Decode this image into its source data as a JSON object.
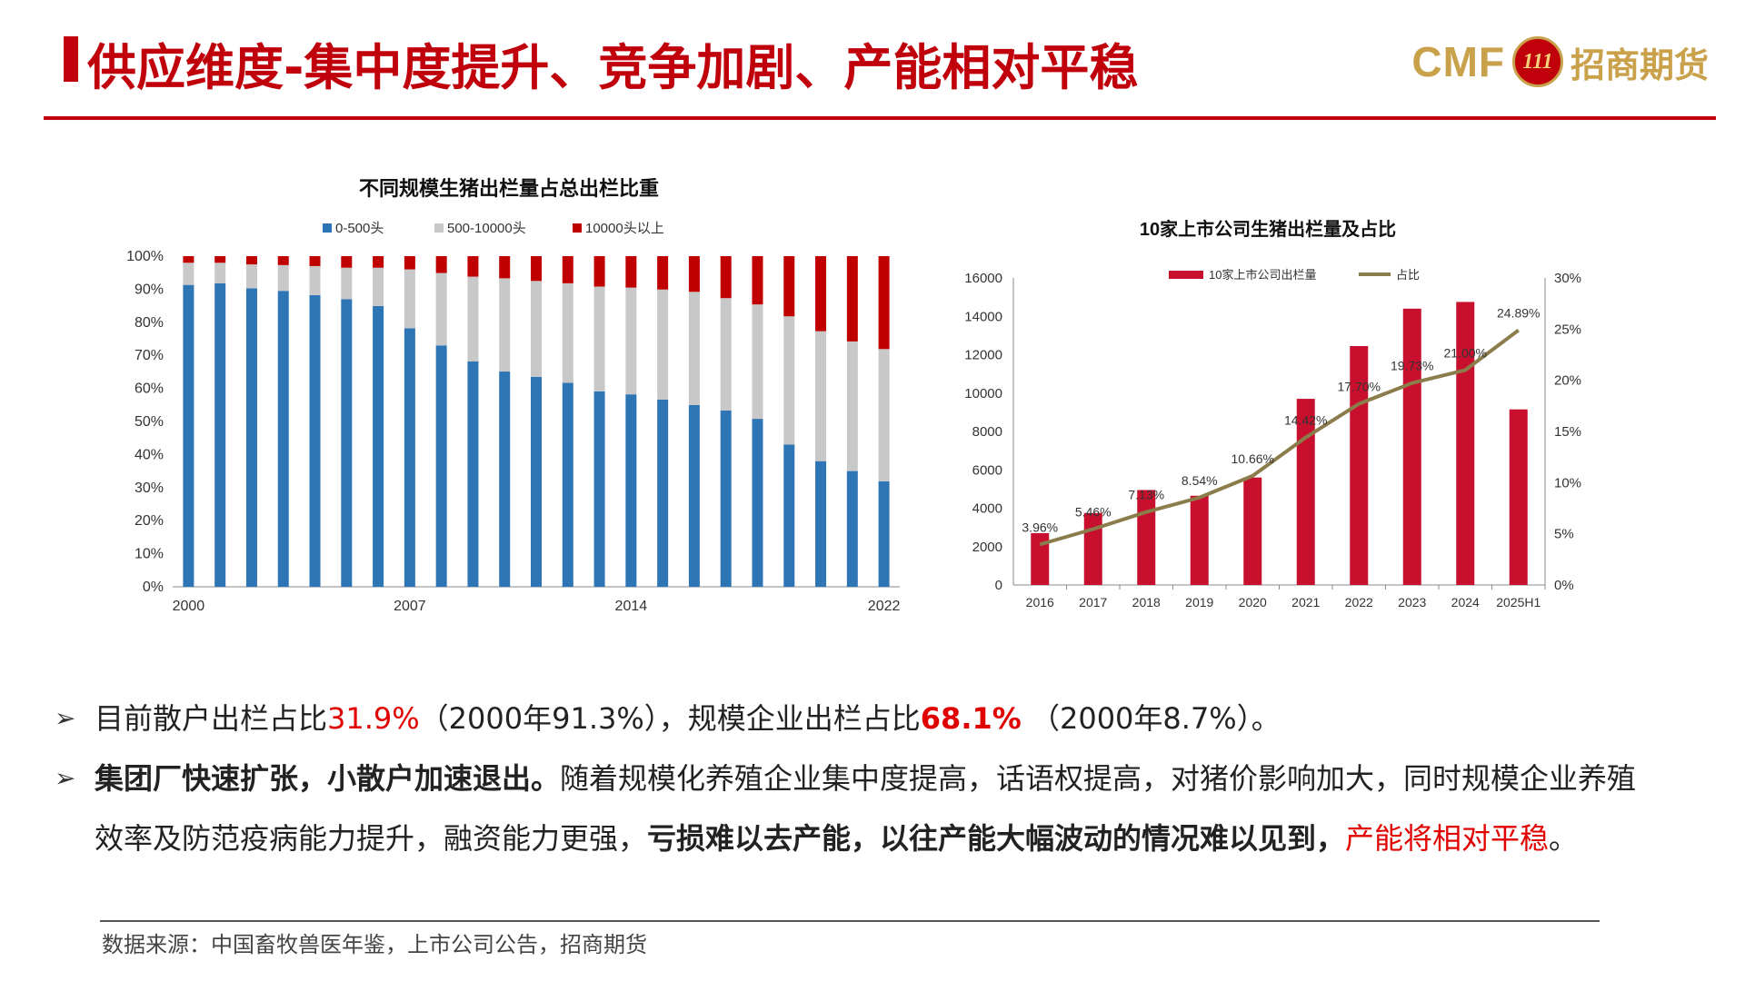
{
  "header": {
    "title": "供应维度-集中度提升、竞争加剧、产能相对平稳",
    "logo_text": "CMF",
    "logo_badge": "111",
    "logo_cn": "招商期货"
  },
  "colors": {
    "accent": "#c0000b",
    "blue": "#2e75b6",
    "gray": "#c8c8c8",
    "red": "#c00000",
    "crimson": "#c8102e",
    "olive": "#8b7d4b",
    "gold": "#c9a14a"
  },
  "chart_data": [
    {
      "type": "bar",
      "stacked": true,
      "title": "不同规模生猪出栏量占总出栏比重",
      "legend_position": "top",
      "categories": [
        "2000",
        "2001",
        "2002",
        "2003",
        "2004",
        "2005",
        "2006",
        "2007",
        "2008",
        "2009",
        "2010",
        "2011",
        "2012",
        "2013",
        "2014",
        "2015",
        "2016",
        "2017",
        "2018",
        "2019",
        "2020",
        "2021",
        "2022"
      ],
      "x_tick_labels": [
        "2000",
        "2007",
        "2014",
        "2022"
      ],
      "ylim": [
        0,
        100
      ],
      "y_ticks": [
        "0%",
        "10%",
        "20%",
        "30%",
        "40%",
        "50%",
        "60%",
        "70%",
        "80%",
        "90%",
        "100%"
      ],
      "series": [
        {
          "name": "0-500头",
          "color": "#2e75b6",
          "values": [
            91.3,
            91.8,
            90.3,
            89.5,
            88.2,
            87.0,
            84.9,
            78.2,
            73.0,
            68.2,
            65.1,
            63.5,
            61.7,
            59.1,
            58.2,
            56.6,
            55.0,
            53.3,
            50.8,
            43.0,
            38.0,
            35.0,
            31.9
          ]
        },
        {
          "name": "500-10000头",
          "color": "#c8c8c8",
          "values": [
            6.7,
            6.2,
            7.2,
            7.8,
            8.8,
            9.5,
            11.6,
            17.8,
            21.9,
            25.6,
            28.2,
            29.0,
            30.1,
            31.7,
            32.3,
            33.3,
            34.2,
            34.0,
            34.6,
            38.8,
            39.3,
            39.2,
            40.0
          ]
        },
        {
          "name": "10000头以上",
          "color": "#c00000",
          "values": [
            2.0,
            2.0,
            2.5,
            2.7,
            3.0,
            3.5,
            3.5,
            4.0,
            5.1,
            6.2,
            6.7,
            7.5,
            8.2,
            9.2,
            9.5,
            10.1,
            10.8,
            12.7,
            14.6,
            18.2,
            22.7,
            25.8,
            28.1
          ]
        }
      ]
    },
    {
      "type": "bar+line",
      "title": "10家上市公司生猪出栏量及占比",
      "legend_position": "top",
      "categories": [
        "2016",
        "2017",
        "2018",
        "2019",
        "2020",
        "2021",
        "2022",
        "2023",
        "2024",
        "2025H1"
      ],
      "y_left_lim": [
        0,
        16000
      ],
      "y_left_ticks": [
        "0",
        "2000",
        "4000",
        "6000",
        "8000",
        "10000",
        "12000",
        "14000",
        "16000"
      ],
      "y_right_lim": [
        0,
        30
      ],
      "y_right_ticks": [
        "0%",
        "5%",
        "10%",
        "15%",
        "20%",
        "25%",
        "30%"
      ],
      "bars": {
        "name": "10家上市公司出栏量",
        "color": "#c8102e",
        "values": [
          2700,
          3750,
          4950,
          4650,
          5600,
          9700,
          12450,
          14400,
          14750,
          9150
        ]
      },
      "line": {
        "name": "占比",
        "color": "#8b7d4b",
        "values": [
          3.96,
          5.46,
          7.13,
          8.54,
          10.66,
          14.42,
          17.7,
          19.73,
          21.0,
          24.89
        ]
      },
      "data_labels": [
        "3.96%",
        "5.46%",
        "7.13%",
        "8.54%",
        "10.66%",
        "14.42%",
        "17.70%",
        "19.73%",
        "21.00%",
        "24.89%"
      ]
    }
  ],
  "bullets": {
    "b1": {
      "t1": "目前散户出栏占比",
      "v1": "31.9%",
      "t2": "（2000年91.3%），规模企业出栏占比",
      "v2": "68.1%",
      "t3": " （2000年8.7%）。"
    },
    "b2": {
      "t1": "集团厂快速扩张，小散户加速退出。",
      "t2": "随着规模化养殖企业集中度提高，话语权提高，对猪价影响加大，同时规模企业养殖效率及防范疫病能力提升，融资能力更强，",
      "t3": "亏损难以去产能，以往产能大幅波动的情况难以见到，",
      "t4": "产能将相对平稳",
      "t5": "。"
    }
  },
  "source": "数据来源：中国畜牧兽医年鉴，上市公司公告，招商期货"
}
